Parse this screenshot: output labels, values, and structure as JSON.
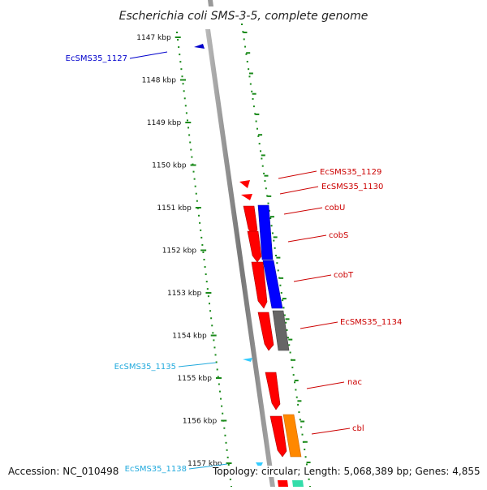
{
  "title": "Escherichia coli SMS-3-5, complete genome",
  "ruler": [
    "1147 kbp",
    "1148 kbp",
    "1149 kbp",
    "1150 kbp",
    "1151 kbp",
    "1152 kbp",
    "1153 kbp",
    "1154 kbp",
    "1155 kbp",
    "1156 kbp",
    "1157 kbp"
  ],
  "gene_labels": [
    {
      "text": "EcSMS35_1127",
      "color": "#0000cc"
    },
    {
      "text": "EcSMS35_1129",
      "color": "#cc0000"
    },
    {
      "text": "EcSMS35_1130",
      "color": "#cc0000"
    },
    {
      "text": "cobU",
      "color": "#cc0000"
    },
    {
      "text": "cobS",
      "color": "#cc0000"
    },
    {
      "text": "cobT",
      "color": "#cc0000"
    },
    {
      "text": "EcSMS35_1134",
      "color": "#cc0000"
    },
    {
      "text": "EcSMS35_1135",
      "color": "#22aadd"
    },
    {
      "text": "nac",
      "color": "#cc0000"
    },
    {
      "text": "cbl",
      "color": "#cc0000"
    },
    {
      "text": "EcSMS35_1138",
      "color": "#22aadd"
    }
  ],
  "colors": {
    "ruler_ticks": "#1a8a1a",
    "backbone": "#888888",
    "forward_cds": "#ff0000",
    "reverse_cds": "#0000cc",
    "function_blue": "#0000ff",
    "function_gray": "#666666",
    "function_orange": "#ff8800"
  },
  "footer": {
    "accession": "Accession: NC_010498",
    "summary": "Topology: circular; Length: 5,068,389 bp; Genes: 4,855"
  }
}
